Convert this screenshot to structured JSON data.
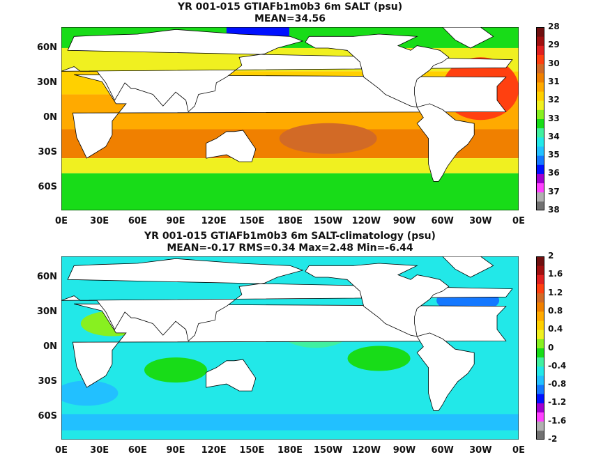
{
  "chart_data": [
    {
      "type": "heatmap",
      "title": "YR 001-015 GTIAFb1m0b3 6m SALT (psu)",
      "subtitle": "MEAN=34.56",
      "x_ticks": [
        "0E",
        "30E",
        "60E",
        "90E",
        "120E",
        "150E",
        "180E",
        "150W",
        "120W",
        "90W",
        "60W",
        "30W",
        "0E"
      ],
      "y_ticks": [
        "60N",
        "30N",
        "0N",
        "30S",
        "60S"
      ],
      "colorbar": {
        "ticks": [
          "28",
          "29",
          "30",
          "31",
          "32",
          "33",
          "34",
          "35",
          "36",
          "37",
          "38"
        ],
        "range": [
          28,
          38
        ],
        "colors": [
          "#707070",
          "#b0b0b0",
          "#ff40ff",
          "#a000d0",
          "#0010ff",
          "#1478ff",
          "#22c0ff",
          "#22e8e8",
          "#40f0a0",
          "#18dc18",
          "#88f020",
          "#f0f020",
          "#ffd000",
          "#ffaa00",
          "#f08000",
          "#d26a26",
          "#ff4010",
          "#e02020",
          "#a01010",
          "#701010"
        ]
      },
      "mean": 34.56
    },
    {
      "type": "heatmap",
      "title": "YR 001-015 GTIAFb1m0b3 6m SALT-climatology (psu)",
      "subtitle": "MEAN=-0.17   RMS=0.34   Max=2.48   Min=-6.44",
      "x_ticks": [
        "0E",
        "30E",
        "60E",
        "90E",
        "120E",
        "150E",
        "180E",
        "150W",
        "120W",
        "90W",
        "60W",
        "30W",
        "0E"
      ],
      "y_ticks": [
        "60N",
        "30N",
        "0N",
        "30S",
        "60S"
      ],
      "colorbar": {
        "ticks": [
          "2",
          "1.6",
          "1.2",
          "0.8",
          "0.4",
          "0",
          "-0.4",
          "-0.8",
          "-1.2",
          "-1.6",
          "-2"
        ],
        "range": [
          -2,
          2
        ],
        "colors": [
          "#707070",
          "#b0b0b0",
          "#ff40ff",
          "#a000d0",
          "#0010ff",
          "#1478ff",
          "#22c0ff",
          "#22e8e8",
          "#40f0a0",
          "#18dc18",
          "#88f020",
          "#f0f020",
          "#ffd000",
          "#ffaa00",
          "#f08000",
          "#d26a26",
          "#ff4010",
          "#e02020",
          "#a01010",
          "#701010"
        ]
      },
      "mean": -0.17,
      "rms": 0.34,
      "max": 2.48,
      "min": -6.44
    }
  ]
}
